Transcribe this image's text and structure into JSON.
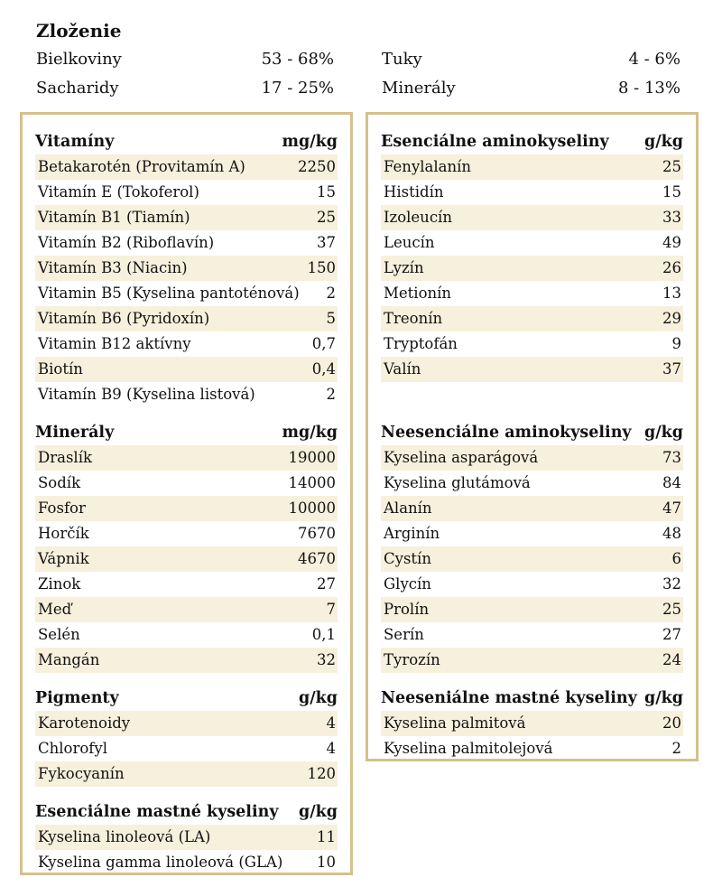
{
  "title": "Zloženie",
  "composition": [
    {
      "label": "Bielkoviny",
      "value": "53 - 68%"
    },
    {
      "label": "Sacharidy",
      "value": "17 - 25%"
    },
    {
      "label": "Tuky",
      "value": "4 - 6%"
    },
    {
      "label": "Minerály",
      "value": "8 - 13%"
    }
  ],
  "left": [
    {
      "title": "Vitamíny",
      "unit": "mg/kg",
      "rows": [
        [
          "Betakarotén (Provitamín A)",
          "2250"
        ],
        [
          "Vitamín E (Tokoferol)",
          "15"
        ],
        [
          "Vitamín B1 (Tiamín)",
          "25"
        ],
        [
          "Vitamín B2 (Riboflavín)",
          "37"
        ],
        [
          "Vitamín B3 (Niacin)",
          "150"
        ],
        [
          "Vitamin B5 (Kyselina pantoténová)",
          "2"
        ],
        [
          "Vitamín B6 (Pyridoxín)",
          "5"
        ],
        [
          "Vitamin B12 aktívny",
          "0,7"
        ],
        [
          "Biotín",
          "0,4"
        ],
        [
          "Vitamín B9 (Kyselina listová)",
          "2"
        ]
      ]
    },
    {
      "title": "Minerály",
      "unit": "mg/kg",
      "rows": [
        [
          "Draslík",
          "19000"
        ],
        [
          "Sodík",
          "14000"
        ],
        [
          "Fosfor",
          "10000"
        ],
        [
          "Horčík",
          "7670"
        ],
        [
          "Vápnik",
          "4670"
        ],
        [
          "Zinok",
          "27"
        ],
        [
          "Meď",
          "7"
        ],
        [
          "Selén",
          "0,1"
        ],
        [
          "Mangán",
          "32"
        ]
      ]
    },
    {
      "title": "Pigmenty",
      "unit": "g/kg",
      "rows": [
        [
          "Karotenoidy",
          "4"
        ],
        [
          "Chlorofyl",
          "4"
        ],
        [
          "Fykocyanín",
          "120"
        ]
      ]
    },
    {
      "title": "Esenciálne mastné kyseliny",
      "unit": "g/kg",
      "rows": [
        [
          "Kyselina linoleová (LA)",
          "11"
        ],
        [
          "Kyselina gamma linoleová (GLA)",
          "10"
        ]
      ]
    }
  ],
  "right": [
    {
      "title": "Esenciálne aminokyseliny",
      "unit": "g/kg",
      "rows": [
        [
          "Fenylalanín",
          "25"
        ],
        [
          "Histidín",
          "15"
        ],
        [
          "Izoleucín",
          "33"
        ],
        [
          "Leucín",
          "49"
        ],
        [
          "Lyzín",
          "26"
        ],
        [
          "Metionín",
          "13"
        ],
        [
          "Treonín",
          "29"
        ],
        [
          "Tryptofán",
          "9"
        ],
        [
          "Valín",
          "37"
        ]
      ]
    },
    {
      "title": "Neesenciálne aminokyseliny",
      "unit": "g/kg",
      "rows": [
        [
          "Kyselina asparágová",
          "73"
        ],
        [
          "Kyselina glutámová",
          "84"
        ],
        [
          "Alanín",
          "47"
        ],
        [
          "Arginín",
          "48"
        ],
        [
          "Cystín",
          "6"
        ],
        [
          "Glycín",
          "32"
        ],
        [
          "Prolín",
          "25"
        ],
        [
          "Serín",
          "27"
        ],
        [
          "Tyrozín",
          "24"
        ]
      ]
    },
    {
      "title": "Neeseniálne mastné kyseliny",
      "unit": "g/kg",
      "rows": [
        [
          "Kyselina palmitová",
          "20"
        ],
        [
          "Kyselina palmitolejová",
          "2"
        ]
      ]
    }
  ]
}
